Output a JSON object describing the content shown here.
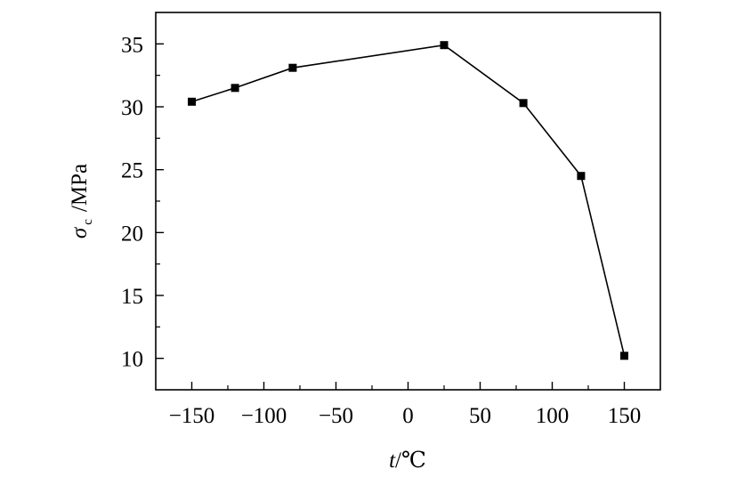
{
  "chart_data": {
    "type": "line",
    "x": [
      -150,
      -120,
      -80,
      25,
      80,
      120,
      150
    ],
    "series": [
      {
        "values": [
          30.4,
          31.5,
          33.1,
          34.9,
          30.3,
          24.5,
          10.2
        ],
        "color": "#000000",
        "marker": "square"
      }
    ],
    "xlabel": {
      "var": "t",
      "unit": "/℃"
    },
    "ylabel": {
      "var": "σ",
      "sub": "c",
      "unit": "/MPa"
    },
    "xlim": [
      -175,
      175
    ],
    "ylim": [
      7.5,
      37.5
    ],
    "xticks": [
      {
        "value": -150,
        "label": "−150"
      },
      {
        "value": -100,
        "label": "−100"
      },
      {
        "value": -50,
        "label": "−50"
      },
      {
        "value": 0,
        "label": "0"
      },
      {
        "value": 50,
        "label": "50"
      },
      {
        "value": 100,
        "label": "100"
      },
      {
        "value": 150,
        "label": "150"
      }
    ],
    "yticks": [
      {
        "value": 10,
        "label": "10"
      },
      {
        "value": 15,
        "label": "15"
      },
      {
        "value": 20,
        "label": "20"
      },
      {
        "value": 25,
        "label": "25"
      },
      {
        "value": 30,
        "label": "30"
      },
      {
        "value": 35,
        "label": "35"
      }
    ],
    "grid": false,
    "legend": "none"
  }
}
